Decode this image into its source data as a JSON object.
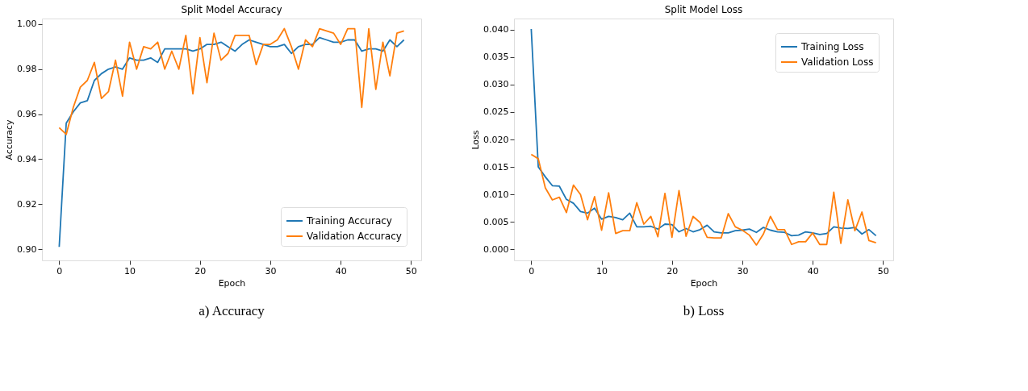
{
  "chart_data": [
    {
      "type": "line",
      "title": "Split Model Accuracy",
      "xlabel": "Epoch",
      "ylabel": "Accuracy",
      "annotations": [
        "a) Accuracy"
      ],
      "x": [
        0,
        1,
        2,
        3,
        4,
        5,
        6,
        7,
        8,
        9,
        10,
        11,
        12,
        13,
        14,
        15,
        16,
        17,
        18,
        19,
        20,
        21,
        22,
        23,
        24,
        25,
        26,
        27,
        28,
        29,
        30,
        31,
        32,
        33,
        34,
        35,
        36,
        37,
        38,
        39,
        40,
        41,
        42,
        43,
        44,
        45,
        46,
        47,
        48,
        49
      ],
      "series": [
        {
          "name": "Training Accuracy",
          "color": "#1f77b4",
          "values": [
            0.901,
            0.956,
            0.961,
            0.965,
            0.966,
            0.975,
            0.978,
            0.98,
            0.981,
            0.98,
            0.985,
            0.984,
            0.984,
            0.985,
            0.983,
            0.989,
            0.989,
            0.989,
            0.989,
            0.988,
            0.989,
            0.991,
            0.991,
            0.992,
            0.99,
            0.988,
            0.991,
            0.993,
            0.992,
            0.991,
            0.99,
            0.99,
            0.991,
            0.987,
            0.99,
            0.991,
            0.991,
            0.994,
            0.993,
            0.992,
            0.992,
            0.993,
            0.993,
            0.988,
            0.989,
            0.989,
            0.988,
            0.993,
            0.99,
            0.993
          ]
        },
        {
          "name": "Validation Accuracy",
          "color": "#ff7f0e",
          "values": [
            0.954,
            0.951,
            0.963,
            0.972,
            0.975,
            0.983,
            0.967,
            0.97,
            0.984,
            0.968,
            0.992,
            0.98,
            0.99,
            0.989,
            0.992,
            0.98,
            0.988,
            0.98,
            0.995,
            0.969,
            0.994,
            0.974,
            0.996,
            0.984,
            0.987,
            0.995,
            0.995,
            0.995,
            0.982,
            0.991,
            0.991,
            0.993,
            0.998,
            0.99,
            0.98,
            0.993,
            0.99,
            0.998,
            0.997,
            0.996,
            0.991,
            0.998,
            0.998,
            0.963,
            0.998,
            0.971,
            0.992,
            0.977,
            0.996,
            0.997
          ]
        }
      ],
      "xlim": [
        -2.45,
        51.45
      ],
      "xticks": [
        0,
        10,
        20,
        30,
        40,
        50
      ],
      "ylim": [
        0.895,
        1.0025
      ],
      "yticks": [
        {
          "value": 0.9,
          "label": "0.90"
        },
        0.92,
        0.94,
        0.96,
        0.98,
        {
          "value": 1.0,
          "label": "1.00"
        }
      ],
      "legend": "bottom right",
      "grid": false,
      "marker": "none",
      "line_style": "solid"
    },
    {
      "type": "line",
      "title": "Split Model Loss",
      "xlabel": "Epoch",
      "ylabel": "Loss",
      "annotations": [
        "b) Loss"
      ],
      "x": [
        0,
        1,
        2,
        3,
        4,
        5,
        6,
        7,
        8,
        9,
        10,
        11,
        12,
        13,
        14,
        15,
        16,
        17,
        18,
        19,
        20,
        21,
        22,
        23,
        24,
        25,
        26,
        27,
        28,
        29,
        30,
        31,
        32,
        33,
        34,
        35,
        36,
        37,
        38,
        39,
        40,
        41,
        42,
        43,
        44,
        45,
        46,
        47,
        48,
        49
      ],
      "series": [
        {
          "name": "Training Loss",
          "color": "#1f77b4",
          "values": [
            0.0401,
            0.015,
            0.0132,
            0.0116,
            0.0115,
            0.0091,
            0.0084,
            0.0069,
            0.0066,
            0.0075,
            0.0055,
            0.006,
            0.0058,
            0.0054,
            0.0066,
            0.0041,
            0.0041,
            0.0042,
            0.0037,
            0.0046,
            0.0045,
            0.0032,
            0.0038,
            0.0032,
            0.0036,
            0.0044,
            0.0032,
            0.003,
            0.003,
            0.0034,
            0.0035,
            0.0037,
            0.0031,
            0.004,
            0.0035,
            0.0032,
            0.0031,
            0.0025,
            0.0026,
            0.0032,
            0.003,
            0.0027,
            0.0029,
            0.0041,
            0.0039,
            0.0038,
            0.004,
            0.0028,
            0.0036,
            0.0025
          ]
        },
        {
          "name": "Validation Loss",
          "color": "#ff7f0e",
          "values": [
            0.0173,
            0.0165,
            0.0112,
            0.009,
            0.0095,
            0.0067,
            0.0117,
            0.01,
            0.0054,
            0.0096,
            0.0035,
            0.0103,
            0.0029,
            0.0034,
            0.0034,
            0.0085,
            0.0046,
            0.006,
            0.0023,
            0.0102,
            0.0022,
            0.0107,
            0.0024,
            0.006,
            0.0049,
            0.0022,
            0.0021,
            0.0021,
            0.0065,
            0.0041,
            0.0035,
            0.0026,
            0.0008,
            0.0028,
            0.006,
            0.0036,
            0.0036,
            0.0009,
            0.0014,
            0.0014,
            0.003,
            0.0009,
            0.0009,
            0.0104,
            0.0011,
            0.009,
            0.0034,
            0.0068,
            0.0016,
            0.0012
          ]
        }
      ],
      "xlim": [
        -2.45,
        51.45
      ],
      "xticks": [
        0,
        10,
        20,
        30,
        40,
        50
      ],
      "ylim": [
        -0.002,
        0.042
      ],
      "yticks": [
        {
          "value": 0,
          "label": "0.000"
        },
        {
          "value": 0.005,
          "label": "0.005"
        },
        {
          "value": 0.01,
          "label": "0.010"
        },
        {
          "value": 0.015,
          "label": "0.015"
        },
        {
          "value": 0.02,
          "label": "0.020"
        },
        {
          "value": 0.025,
          "label": "0.025"
        },
        {
          "value": 0.03,
          "label": "0.030"
        },
        {
          "value": 0.035,
          "label": "0.035"
        },
        {
          "value": 0.04,
          "label": "0.040"
        }
      ],
      "legend": "top right",
      "grid": false,
      "marker": "none",
      "line_style": "solid"
    }
  ]
}
